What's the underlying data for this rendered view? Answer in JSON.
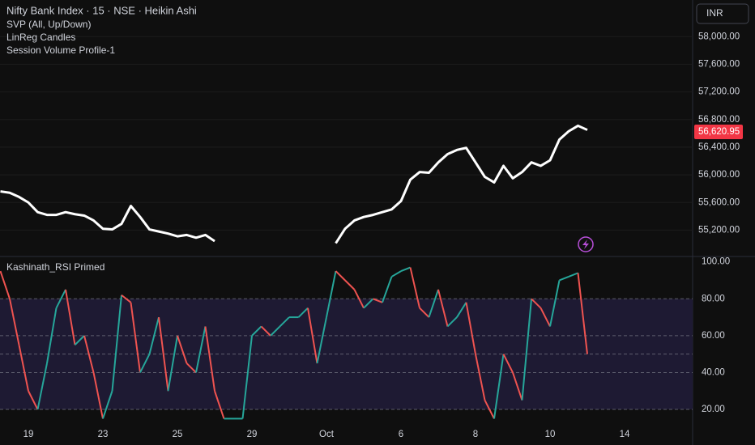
{
  "chart_data": [
    {
      "type": "line",
      "title": "Nifty Bank Index · 15 · NSE · Heikin Ashi",
      "indicators": [
        "SVP (All, Up/Down)",
        "LinReg Candles",
        "Session Volume Profile-1"
      ],
      "currency": "INR",
      "color": "#ffffff",
      "last_price": {
        "value": 56620.95,
        "label": "56,620.95"
      },
      "ylim": [
        54830,
        58530
      ],
      "yticks": [
        {
          "value": 55200,
          "label": "55,200.00"
        },
        {
          "value": 55600,
          "label": "55,600.00"
        },
        {
          "value": 56000,
          "label": "56,000.00"
        },
        {
          "value": 56400,
          "label": "56,400.00"
        },
        {
          "value": 56800,
          "label": "56,800.00"
        },
        {
          "value": 57200,
          "label": "57,200.00"
        },
        {
          "value": 57600,
          "label": "57,600.00"
        },
        {
          "value": 58000,
          "label": "58,000.00"
        }
      ],
      "grid": true,
      "values": [
        55760,
        55740,
        55680,
        55600,
        55460,
        55420,
        55420,
        55460,
        55430,
        55410,
        55340,
        55220,
        55210,
        55290,
        55550,
        55390,
        55210,
        55180,
        55150,
        55110,
        55130,
        55090,
        55130,
        55040,
        null,
        null,
        null,
        null,
        null,
        null,
        null,
        null,
        null,
        null,
        null,
        null,
        55010,
        55220,
        55340,
        55390,
        55420,
        55460,
        55500,
        55620,
        55930,
        56040,
        56030,
        56180,
        56300,
        56360,
        56390,
        56180,
        55970,
        55890,
        56130,
        55950,
        56040,
        56180,
        56130,
        56210,
        56510,
        56630,
        56710,
        56650,
        null,
        null,
        null,
        null,
        null,
        null,
        null,
        null,
        null,
        null,
        null
      ]
    },
    {
      "type": "line",
      "title": "Kashinath_RSI Primed",
      "up_color": "#26a69a",
      "down_color": "#ef5350",
      "ylim": [
        13,
        102.5
      ],
      "yticks": [
        {
          "value": 20,
          "label": "20.00"
        },
        {
          "value": 40,
          "label": "40.00"
        },
        {
          "value": 60,
          "label": "60.00"
        },
        {
          "value": 80,
          "label": "80.00"
        },
        {
          "value": 100,
          "label": "100.00"
        }
      ],
      "levels": [
        80,
        60,
        50,
        40,
        20
      ],
      "band": [
        20,
        80
      ],
      "band_color": "#1e1a33",
      "categories": [
        null,
        null,
        null,
        "19",
        null,
        null,
        null,
        null,
        null,
        null,
        null,
        "23",
        null,
        null,
        null,
        null,
        null,
        null,
        null,
        "25",
        null,
        null,
        null,
        null,
        null,
        null,
        null,
        "29",
        null,
        null,
        null,
        null,
        null,
        null,
        null,
        "Oct",
        null,
        null,
        null,
        null,
        null,
        null,
        null,
        "6",
        null,
        null,
        null,
        null,
        null,
        null,
        null,
        "8",
        null,
        null,
        null,
        null,
        null,
        null,
        null,
        "10",
        null,
        null,
        null,
        null,
        null,
        null,
        null,
        "14",
        null,
        null,
        null,
        null,
        null,
        null,
        null
      ],
      "values": [
        95,
        80,
        55,
        30,
        20,
        45,
        75,
        85,
        55,
        60,
        40,
        15,
        30,
        82,
        78,
        40,
        50,
        70,
        30,
        60,
        45,
        40,
        65,
        30,
        15,
        15,
        15,
        60,
        65,
        60,
        65,
        70,
        70,
        75,
        45,
        70,
        95,
        90,
        85,
        75,
        80,
        78,
        92,
        95,
        97,
        75,
        70,
        85,
        65,
        70,
        78,
        50,
        25,
        15,
        50,
        40,
        25,
        80,
        75,
        65,
        90,
        92,
        94,
        50,
        null,
        null,
        null,
        null,
        null,
        null,
        null,
        null,
        null,
        null,
        null
      ]
    }
  ]
}
